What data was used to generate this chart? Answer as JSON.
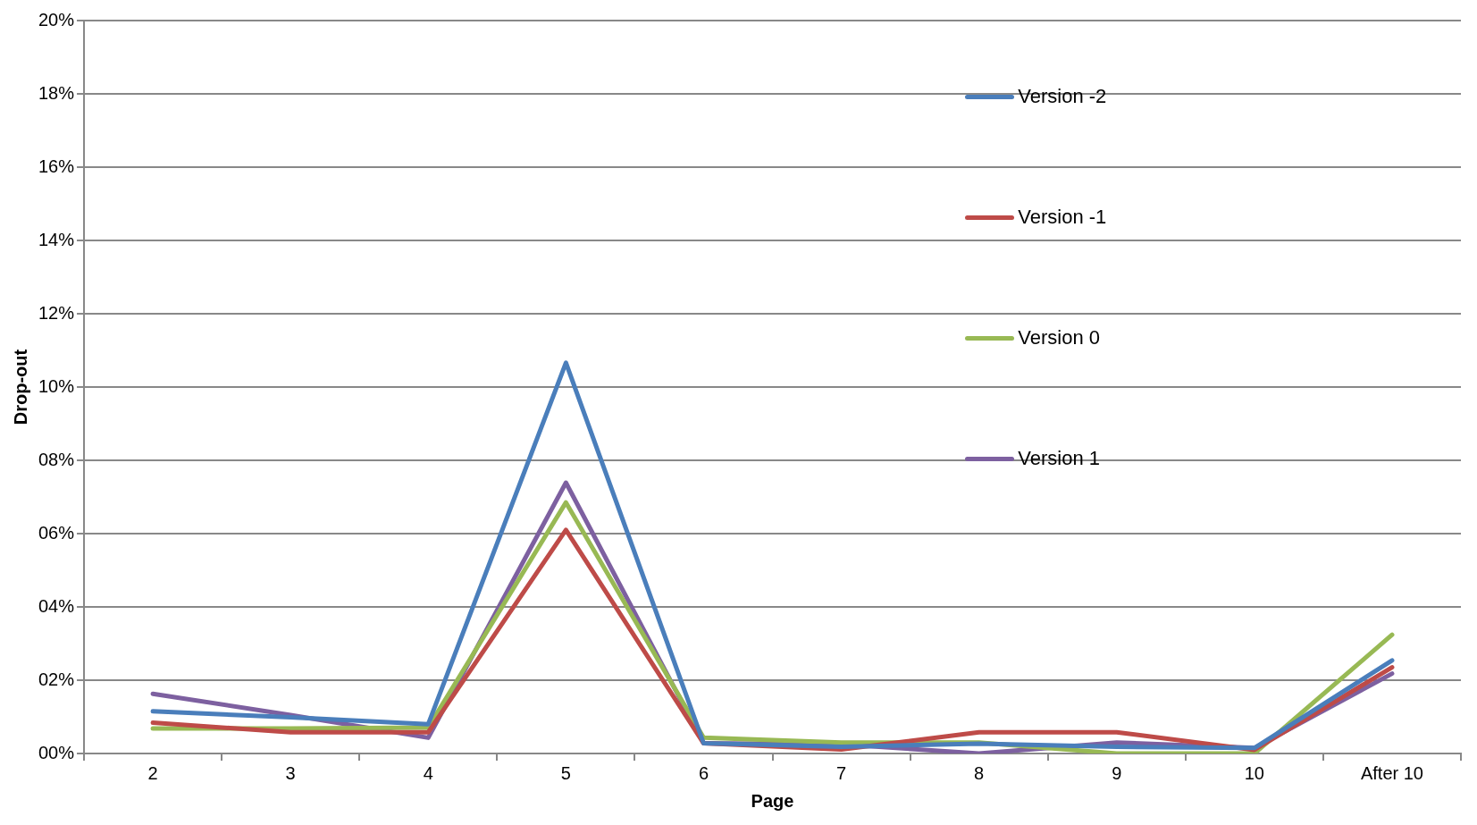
{
  "chart_data": {
    "type": "line",
    "xlabel": "Page",
    "ylabel": "Drop-out",
    "categories": [
      "2",
      "3",
      "4",
      "5",
      "6",
      "7",
      "8",
      "9",
      "10",
      "After 10"
    ],
    "series": [
      {
        "name": "Version -2",
        "color": "#4a7ebb",
        "values": [
          1.15,
          0.99,
          0.8,
          10.66,
          0.28,
          0.18,
          0.27,
          0.18,
          0.15,
          2.54
        ]
      },
      {
        "name": "Version -1",
        "color": "#be4b48",
        "values": [
          0.84,
          0.58,
          0.58,
          6.1,
          0.28,
          0.11,
          0.58,
          0.58,
          0.1,
          2.35
        ]
      },
      {
        "name": "Version 0",
        "color": "#98b954",
        "values": [
          0.68,
          0.68,
          0.71,
          6.85,
          0.43,
          0.3,
          0.3,
          0,
          0,
          3.24
        ]
      },
      {
        "name": "Version 1",
        "color": "#7d60a0",
        "values": [
          1.63,
          1.05,
          0.43,
          7.39,
          0.28,
          0.25,
          0,
          0.3,
          0.15,
          2.18
        ]
      }
    ],
    "ylim": [
      0,
      20
    ],
    "yticks": [
      {
        "value": 0,
        "label": "00%"
      },
      {
        "value": 2,
        "label": "02%"
      },
      {
        "value": 4,
        "label": "04%"
      },
      {
        "value": 6,
        "label": "06%"
      },
      {
        "value": 8,
        "label": "08%"
      },
      {
        "value": 10,
        "label": "10%"
      },
      {
        "value": 12,
        "label": "12%"
      },
      {
        "value": 14,
        "label": "14%"
      },
      {
        "value": 16,
        "label": "16%"
      },
      {
        "value": 18,
        "label": "18%"
      },
      {
        "value": 20,
        "label": "20%"
      }
    ],
    "grid": "y",
    "legend": "top right",
    "marker": "none",
    "line_style": "solid"
  }
}
